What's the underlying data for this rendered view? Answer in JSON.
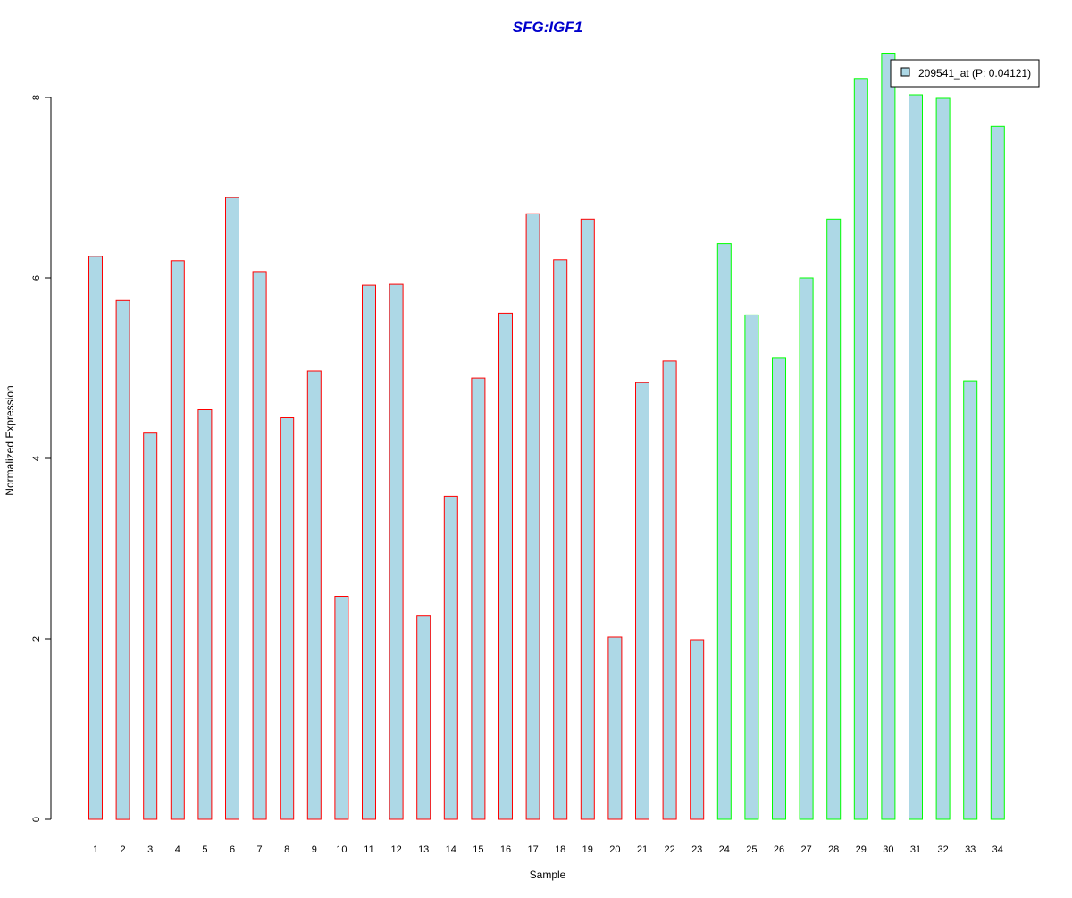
{
  "chart_data": {
    "type": "bar",
    "title": "SFG:IGF1",
    "xlabel": "Sample",
    "ylabel": "Normalized Expression",
    "categories": [
      "1",
      "2",
      "3",
      "4",
      "5",
      "6",
      "7",
      "8",
      "9",
      "10",
      "11",
      "12",
      "13",
      "14",
      "15",
      "16",
      "17",
      "18",
      "19",
      "20",
      "21",
      "22",
      "23",
      "24",
      "25",
      "26",
      "27",
      "28",
      "29",
      "30",
      "31",
      "32",
      "33",
      "34"
    ],
    "series": [
      {
        "name": "209541_at (P: 0.04121)",
        "values": [
          6.24,
          5.75,
          4.28,
          6.19,
          4.54,
          6.89,
          6.07,
          4.45,
          4.97,
          2.47,
          5.92,
          5.93,
          2.26,
          3.58,
          4.89,
          5.61,
          6.71,
          6.2,
          6.65,
          2.02,
          4.84,
          5.08,
          1.99,
          6.38,
          5.59,
          5.11,
          6.0,
          6.65,
          8.21,
          8.49,
          8.03,
          7.99,
          4.86,
          7.68
        ]
      }
    ],
    "groups": [
      {
        "samples": "1-23",
        "border_color": "#ff0000"
      },
      {
        "samples": "24-34",
        "border_color": "#00ff00"
      }
    ],
    "fill_color": "#add8e6",
    "title_color": "#0000cc",
    "y_ticks": [
      0,
      2,
      4,
      6,
      8
    ],
    "ylim": [
      0,
      8.5
    ],
    "grid": false,
    "legend_position": "top-right"
  }
}
